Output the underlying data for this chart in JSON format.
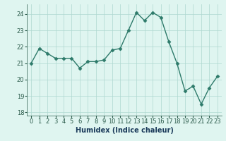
{
  "x": [
    0,
    1,
    2,
    3,
    4,
    5,
    6,
    7,
    8,
    9,
    10,
    11,
    12,
    13,
    14,
    15,
    16,
    17,
    18,
    19,
    20,
    21,
    22,
    23
  ],
  "y": [
    21.0,
    21.9,
    21.6,
    21.3,
    21.3,
    21.3,
    20.7,
    21.1,
    21.1,
    21.2,
    21.8,
    21.9,
    23.0,
    24.1,
    23.6,
    24.1,
    23.8,
    22.3,
    21.0,
    19.3,
    19.6,
    18.5,
    19.5,
    20.2
  ],
  "line_color": "#2d7a6a",
  "marker": "D",
  "marker_size": 2.5,
  "bg_color": "#dff5f0",
  "grid_color": "#aed8d0",
  "xlabel": "Humidex (Indice chaleur)",
  "ylim": [
    17.8,
    24.6
  ],
  "xlim": [
    -0.5,
    23.5
  ],
  "yticks": [
    18,
    19,
    20,
    21,
    22,
    23,
    24
  ],
  "xticks": [
    0,
    1,
    2,
    3,
    4,
    5,
    6,
    7,
    8,
    9,
    10,
    11,
    12,
    13,
    14,
    15,
    16,
    17,
    18,
    19,
    20,
    21,
    22,
    23
  ],
  "tick_fontsize": 6,
  "label_fontsize": 7,
  "line_width": 1.0
}
